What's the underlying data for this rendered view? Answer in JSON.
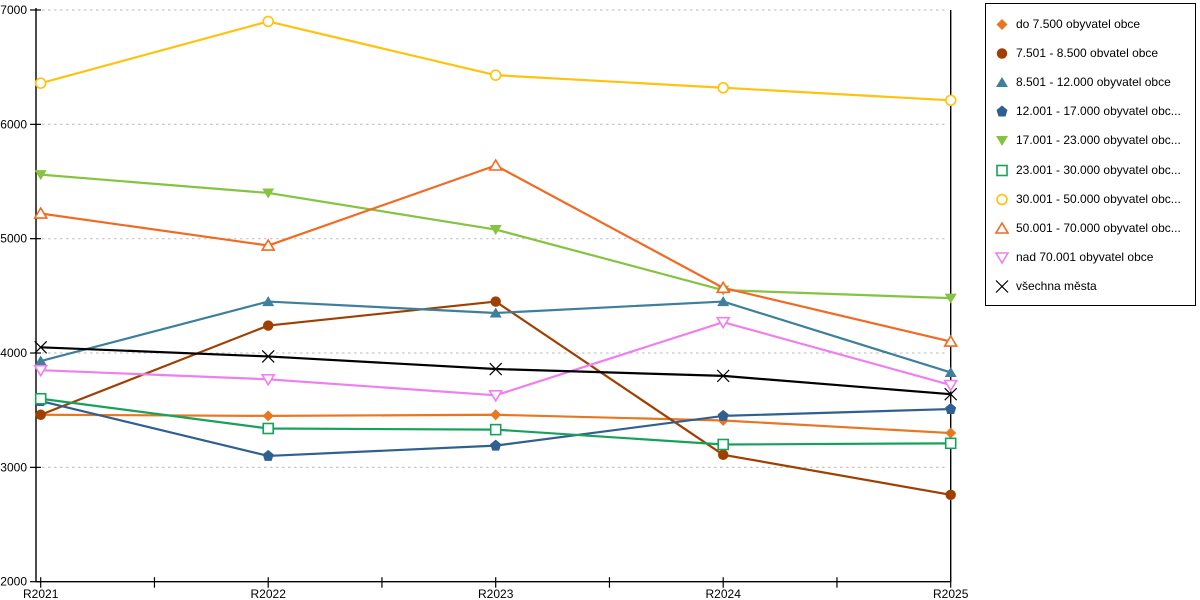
{
  "chart_data": {
    "type": "line",
    "title": "",
    "xlabel": "",
    "ylabel": "",
    "categories": [
      "R2021",
      "R2022",
      "R2023",
      "R2024",
      "R2025"
    ],
    "ylim": [
      2000,
      7000
    ],
    "ytick_step": 1000,
    "y_tick_labels": [
      "2000",
      "3000",
      "4000",
      "5000",
      "6000",
      "7000"
    ],
    "grid": "horizontal-dashed",
    "grid_color": "#c6c6c6",
    "axis_color": "#000000",
    "legend_position": "right",
    "series": [
      {
        "name": "do 7.500 obyvatel obce",
        "marker": "diamond-filled",
        "color": "#E87722",
        "values": [
          3460,
          3450,
          3460,
          3410,
          3300
        ]
      },
      {
        "name": "7.501 - 8.500 obvatel obce",
        "marker": "circle-filled",
        "color": "#A04000",
        "values": [
          3460,
          4240,
          4450,
          3110,
          2760
        ]
      },
      {
        "name": "8.501 - 12.000 obyvatel obce",
        "marker": "triangle-up-filled",
        "color": "#3D7F9D",
        "values": [
          3930,
          4450,
          4350,
          4450,
          3830
        ]
      },
      {
        "name": "12.001 - 17.000 obyvatel obc...",
        "marker": "pentagon-filled",
        "color": "#2F608F",
        "values": [
          3580,
          3100,
          3190,
          3450,
          3510
        ]
      },
      {
        "name": "17.001 - 23.000 obyvatel obc...",
        "marker": "triangle-down-filled",
        "color": "#84C441",
        "values": [
          5560,
          5400,
          5080,
          4550,
          4480
        ]
      },
      {
        "name": "23.001 - 30.000 obyvatel obc...",
        "marker": "square-hollow",
        "color": "#17A25B",
        "values": [
          3600,
          3340,
          3330,
          3200,
          3210
        ]
      },
      {
        "name": "30.001 - 50.000 obyvatel obc...",
        "marker": "circle-hollow",
        "color": "#FFC20E",
        "values": [
          6360,
          6900,
          6430,
          6320,
          6210
        ]
      },
      {
        "name": "50.001 - 70.000 obyvatel obc...",
        "marker": "triangle-up-hollow",
        "color": "#F26A21",
        "values": [
          5220,
          4940,
          5640,
          4570,
          4100
        ]
      },
      {
        "name": "nad 70.001 obyvatel obce",
        "marker": "triangle-down-hollow",
        "color": "#EF7FEF",
        "values": [
          3850,
          3770,
          3630,
          4270,
          3720
        ]
      },
      {
        "name": "všechna města",
        "marker": "x-cross",
        "color": "#000000",
        "values": [
          4050,
          3970,
          3860,
          3800,
          3640
        ]
      }
    ]
  }
}
